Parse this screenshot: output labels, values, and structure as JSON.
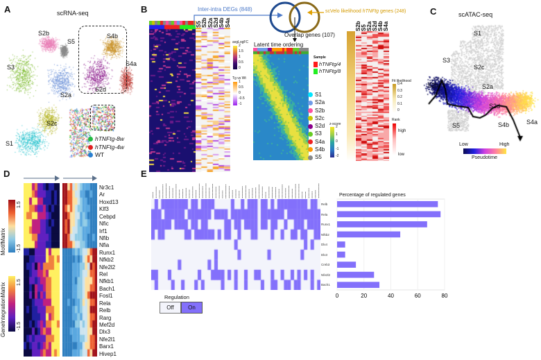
{
  "panels": {
    "A": {
      "label": "A",
      "title": "scRNA-seq",
      "clusters": [
        {
          "name": "S2b",
          "color": "#e87fb6"
        },
        {
          "name": "S5",
          "color": "#8a8a8a"
        },
        {
          "name": "S4b",
          "color": "#c8922a"
        },
        {
          "name": "S3",
          "color": "#7cba2c"
        },
        {
          "name": "S4a",
          "color": "#c0453f"
        },
        {
          "name": "S2a",
          "color": "#6f93d8"
        },
        {
          "name": "S2d",
          "color": "#8b1a8b"
        },
        {
          "name": "S2c",
          "color": "#b8b830"
        },
        {
          "name": "S1",
          "color": "#20c0cc"
        }
      ],
      "legend": [
        {
          "label": "hTNFtg-8w",
          "color": "#22bb44"
        },
        {
          "label": "hTNFtg-4w",
          "color": "#e02020"
        },
        {
          "label": "WT",
          "color": "#2a7fd0"
        }
      ]
    },
    "B": {
      "label": "B",
      "inter_intra": "Inter-intra DEGs (848)",
      "scvelo_prefix": "scVelo likelihood ",
      "scvelo_italic": "hTNFtg",
      "scvelo_suffix": " genes (248)",
      "overlap": "Overlap genes (107)",
      "latent": "Latent time ordering",
      "deg_columns": [
        "S5",
        "S2b",
        "S2a",
        "S2d",
        "S4b",
        "S4a"
      ],
      "fit_columns": [
        "S2b",
        "S5",
        "S2a",
        "S2d",
        "S4b",
        "S4a"
      ],
      "avglogfc": {
        "title": "avgLogFC",
        "ticks": [
          "2",
          "1.5",
          "1",
          "0.5",
          "0"
        ]
      },
      "tgvswt": {
        "title": "Tg vs Wt",
        "ticks": [
          "1",
          "0.5",
          "0",
          "-0.5",
          "-1"
        ]
      },
      "sample": {
        "title": "Sample",
        "items": [
          {
            "label": "hTNFtg/4",
            "color": "#ff1a1a"
          },
          {
            "label": "hTNFtg/8",
            "color": "#22ee22"
          }
        ]
      },
      "clusters": [
        {
          "name": "S1",
          "color": "#00e5ff"
        },
        {
          "name": "S2a",
          "color": "#6f9be8"
        },
        {
          "name": "S2b",
          "color": "#ff4fa0"
        },
        {
          "name": "S2c",
          "color": "#c8c800"
        },
        {
          "name": "S2d",
          "color": "#8b008b"
        },
        {
          "name": "S3",
          "color": "#66cc22"
        },
        {
          "name": "S4a",
          "color": "#ee2222"
        },
        {
          "name": "S4b",
          "color": "#ff9900"
        },
        {
          "name": "S5",
          "color": "#888888"
        }
      ],
      "zscore": {
        "title": "z-score",
        "ticks": [
          "2",
          "1",
          "0",
          "-1",
          "-2"
        ]
      },
      "fit": {
        "title": "Fit likelihood",
        "ticks": [
          "0.4",
          "0.3",
          "0.2",
          "0.1",
          "0"
        ]
      },
      "rank": {
        "title": "Rank",
        "high": "high",
        "low": "low"
      }
    },
    "C": {
      "label": "C",
      "title": "scATAC-seq",
      "clusters": [
        "S1",
        "S3",
        "S2c",
        "S2b",
        "S2a",
        "S2d",
        "S4b",
        "S5",
        "S4a"
      ],
      "low": "Low",
      "high": "High",
      "pseudotime": "Pseudotime"
    },
    "D": {
      "label": "D",
      "motif_label": "MotifMatrix",
      "motif_ticks": [
        "1.5",
        "-1.5"
      ],
      "gim_label": "GeneIntegrationMatrix",
      "gim_ticks": [
        "1.5",
        "-1.5"
      ],
      "genes": [
        "Nr3c1",
        "Ar",
        "Hoxd13",
        "Klf3",
        "Cebpd",
        "Nfic",
        "Irf1",
        "Nfib",
        "Nfia",
        "Runx1",
        "Nfkb2",
        "Nfe2l2",
        "Rel",
        "Nfkb1",
        "Bach1",
        "Fosl1",
        "Rela",
        "Relb",
        "Rarg",
        "Mef2d",
        "Dlx3",
        "Nfe2l1",
        "Barx1",
        "Hivep1"
      ]
    },
    "E": {
      "label": "E",
      "regulation": {
        "title": "Regulation",
        "off": "Off",
        "on": "On",
        "on_color": "#8370fb",
        "off_color": "#f3f4fb"
      }
    }
  },
  "chart_data": {
    "type": "bar",
    "orientation": "horizontal",
    "title": "Percentage of regulated genes",
    "categories": [
      "Relb",
      "Rela",
      "Runx1",
      "Nfkb2",
      "Dlx4",
      "Dlx3",
      "Creb3",
      "Nfe2l2",
      "Bach1"
    ],
    "values": [
      75,
      77,
      67,
      47,
      6,
      6,
      14,
      27.5,
      31.5
    ],
    "xlim": [
      0,
      80
    ],
    "xticks": [
      "0",
      "20",
      "40",
      "60",
      "80"
    ],
    "grid": true,
    "color": "#8370fb"
  }
}
